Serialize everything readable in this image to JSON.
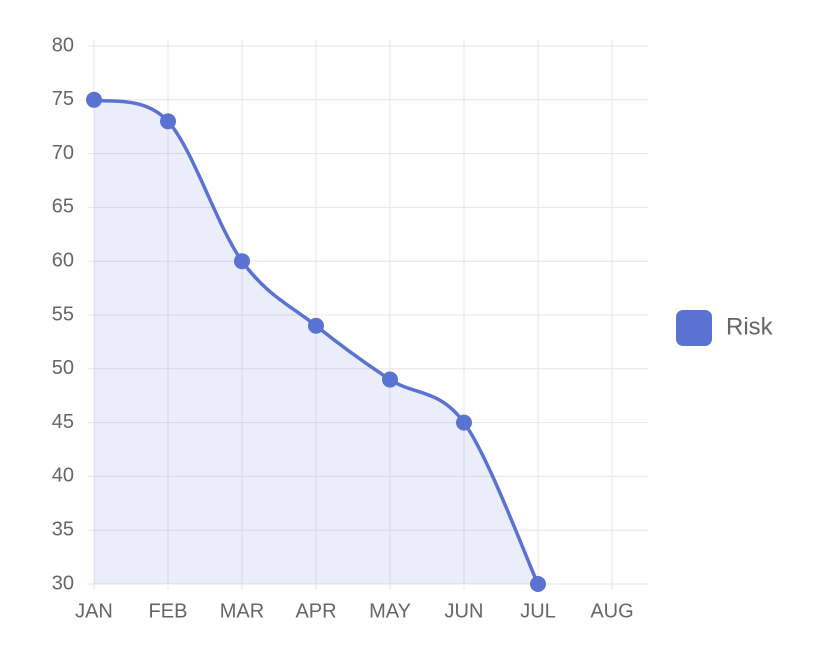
{
  "chart_data": {
    "type": "area",
    "categories": [
      "JAN",
      "FEB",
      "MAR",
      "APR",
      "MAY",
      "JUN",
      "JUL",
      "AUG"
    ],
    "series": [
      {
        "name": "Risk",
        "color": "#5a73d2",
        "values": [
          75,
          73,
          60,
          54,
          49,
          45,
          30,
          null
        ]
      }
    ],
    "ylim": [
      30,
      80
    ],
    "yticks": [
      30,
      35,
      40,
      45,
      50,
      55,
      60,
      65,
      70,
      75,
      80
    ],
    "grid": true,
    "smooth": true,
    "legend": "right"
  }
}
